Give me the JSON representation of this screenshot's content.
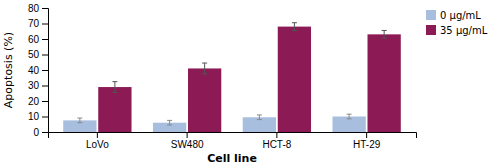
{
  "chart_data": {
    "type": "bar",
    "categories": [
      "LoVo",
      "SW480",
      "HCT-8",
      "HT-29"
    ],
    "series": [
      {
        "name": "0 μg/mL",
        "color": "#a8bede",
        "values": [
          7.5,
          6.0,
          9.5,
          10.0
        ],
        "errors": [
          1.5,
          1.5,
          1.5,
          1.5
        ]
      },
      {
        "name": "35 μg/mL",
        "color": "#8b1a55",
        "values": [
          29.0,
          41.0,
          68.0,
          63.0
        ],
        "errors": [
          3.5,
          3.5,
          2.5,
          2.5
        ]
      }
    ],
    "xlabel": "Cell line",
    "ylabel": "Apoptosis (%)",
    "ylim": [
      0,
      80
    ],
    "yticks": [
      0,
      10,
      20,
      30,
      40,
      50,
      60,
      70,
      80
    ],
    "grid": false,
    "legend": "upper right"
  }
}
